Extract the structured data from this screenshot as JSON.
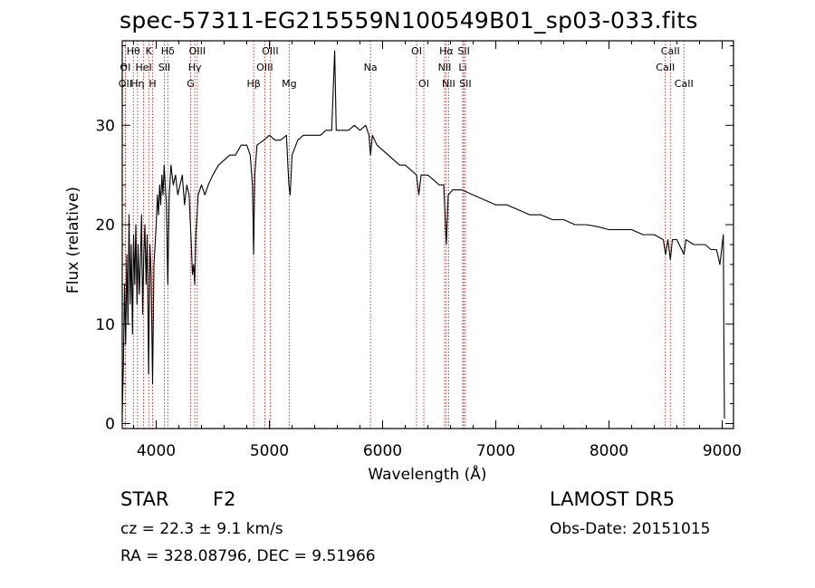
{
  "title": "spec-57311-EG215559N100549B01_sp03-033.fits",
  "info": {
    "object_class": "STAR",
    "subclass": "F2",
    "survey": "LAMOST DR5",
    "cz": "cz = 22.3 ± 9.1 km/s",
    "obs_date": "Obs-Date: 20151015",
    "radec": "RA = 328.08796, DEC =   9.51966"
  },
  "chart_data": {
    "type": "line",
    "title": "spec-57311-EG215559N100549B01_sp03-033.fits",
    "xlabel": "Wavelength (Å)",
    "ylabel": "Flux (relative)",
    "xlim": [
      3700,
      9100
    ],
    "ylim": [
      -0.5,
      38.5
    ],
    "xticks": [
      4000,
      5000,
      6000,
      7000,
      8000,
      9000
    ],
    "yticks": [
      0,
      10,
      20,
      30
    ],
    "grid": false,
    "line_color": "#000000",
    "marker_color": "#cc0000",
    "series": [
      {
        "values": [
          [
            3700,
            1
          ],
          [
            3710,
            6
          ],
          [
            3720,
            14
          ],
          [
            3730,
            8
          ],
          [
            3740,
            17
          ],
          [
            3750,
            10
          ],
          [
            3760,
            21
          ],
          [
            3770,
            12
          ],
          [
            3780,
            18
          ],
          [
            3790,
            9
          ],
          [
            3800,
            19
          ],
          [
            3810,
            14
          ],
          [
            3820,
            20
          ],
          [
            3830,
            12
          ],
          [
            3840,
            18
          ],
          [
            3850,
            13
          ],
          [
            3860,
            16
          ],
          [
            3870,
            21
          ],
          [
            3880,
            11
          ],
          [
            3890,
            17
          ],
          [
            3900,
            20
          ],
          [
            3910,
            14
          ],
          [
            3920,
            19
          ],
          [
            3933,
            5
          ],
          [
            3945,
            18
          ],
          [
            3955,
            15
          ],
          [
            3968,
            4
          ],
          [
            3980,
            16
          ],
          [
            3990,
            18
          ],
          [
            4000,
            20
          ],
          [
            4010,
            23
          ],
          [
            4020,
            21
          ],
          [
            4030,
            24
          ],
          [
            4040,
            22
          ],
          [
            4050,
            25
          ],
          [
            4060,
            23
          ],
          [
            4070,
            26
          ],
          [
            4080,
            24
          ],
          [
            4090,
            22
          ],
          [
            4102,
            14
          ],
          [
            4115,
            23
          ],
          [
            4130,
            26
          ],
          [
            4150,
            24
          ],
          [
            4170,
            25
          ],
          [
            4190,
            23
          ],
          [
            4210,
            24
          ],
          [
            4230,
            25
          ],
          [
            4250,
            22
          ],
          [
            4270,
            24
          ],
          [
            4290,
            23
          ],
          [
            4310,
            18
          ],
          [
            4320,
            15
          ],
          [
            4330,
            16
          ],
          [
            4340,
            14
          ],
          [
            4350,
            19
          ],
          [
            4370,
            23
          ],
          [
            4400,
            24
          ],
          [
            4430,
            23
          ],
          [
            4460,
            24
          ],
          [
            4500,
            25
          ],
          [
            4550,
            26
          ],
          [
            4600,
            26.5
          ],
          [
            4650,
            27
          ],
          [
            4700,
            27
          ],
          [
            4750,
            28
          ],
          [
            4800,
            28
          ],
          [
            4830,
            27
          ],
          [
            4850,
            24
          ],
          [
            4861,
            17
          ],
          [
            4870,
            25
          ],
          [
            4890,
            28
          ],
          [
            4950,
            28.5
          ],
          [
            5000,
            29
          ],
          [
            5050,
            28.5
          ],
          [
            5100,
            28.5
          ],
          [
            5150,
            29
          ],
          [
            5172,
            24
          ],
          [
            5183,
            23
          ],
          [
            5200,
            27
          ],
          [
            5250,
            28.5
          ],
          [
            5300,
            29
          ],
          [
            5350,
            29
          ],
          [
            5400,
            29
          ],
          [
            5450,
            29
          ],
          [
            5500,
            29.5
          ],
          [
            5550,
            29.5
          ],
          [
            5577,
            37.5
          ],
          [
            5590,
            29.5
          ],
          [
            5650,
            29.5
          ],
          [
            5700,
            29.5
          ],
          [
            5750,
            30
          ],
          [
            5800,
            29.5
          ],
          [
            5850,
            30
          ],
          [
            5880,
            29
          ],
          [
            5893,
            27
          ],
          [
            5910,
            29
          ],
          [
            5950,
            28
          ],
          [
            6000,
            27.5
          ],
          [
            6050,
            27
          ],
          [
            6100,
            26.5
          ],
          [
            6150,
            26
          ],
          [
            6200,
            26
          ],
          [
            6250,
            25.5
          ],
          [
            6300,
            25
          ],
          [
            6320,
            23
          ],
          [
            6340,
            25
          ],
          [
            6400,
            25
          ],
          [
            6450,
            24.5
          ],
          [
            6500,
            24
          ],
          [
            6540,
            24
          ],
          [
            6563,
            18
          ],
          [
            6580,
            23
          ],
          [
            6620,
            23.5
          ],
          [
            6700,
            23.5
          ],
          [
            6800,
            23
          ],
          [
            6900,
            22.5
          ],
          [
            7000,
            22
          ],
          [
            7100,
            22
          ],
          [
            7200,
            21.5
          ],
          [
            7300,
            21
          ],
          [
            7400,
            21
          ],
          [
            7500,
            20.5
          ],
          [
            7600,
            20.5
          ],
          [
            7700,
            20
          ],
          [
            7800,
            20
          ],
          [
            7900,
            19.8
          ],
          [
            8000,
            19.5
          ],
          [
            8100,
            19.5
          ],
          [
            8200,
            19.5
          ],
          [
            8300,
            19
          ],
          [
            8400,
            19
          ],
          [
            8480,
            18.5
          ],
          [
            8500,
            17
          ],
          [
            8520,
            18.5
          ],
          [
            8542,
            16.5
          ],
          [
            8560,
            18.5
          ],
          [
            8600,
            18.5
          ],
          [
            8662,
            17
          ],
          [
            8680,
            18.5
          ],
          [
            8750,
            18
          ],
          [
            8800,
            18
          ],
          [
            8850,
            18
          ],
          [
            8900,
            17.5
          ],
          [
            8950,
            17.5
          ],
          [
            8980,
            16
          ],
          [
            9000,
            18
          ],
          [
            9010,
            19
          ],
          [
            9015,
            8
          ],
          [
            9020,
            0.5
          ]
        ]
      }
    ],
    "lines": [
      {
        "label": "Hθ",
        "wave": 3798,
        "row": 0
      },
      {
        "label": "K",
        "wave": 3934,
        "row": 0
      },
      {
        "label": "Hδ",
        "wave": 4102,
        "row": 0
      },
      {
        "label": "OIII",
        "wave": 4363,
        "row": 0
      },
      {
        "label": "OIII",
        "wave": 5007,
        "row": 0
      },
      {
        "label": "OI",
        "wave": 6300,
        "row": 0
      },
      {
        "label": "Hα",
        "wave": 6563,
        "row": 0
      },
      {
        "label": "SII",
        "wave": 6717,
        "row": 0
      },
      {
        "label": "CaII",
        "wave": 8542,
        "row": 0
      },
      {
        "label": "OI",
        "wave": 3727,
        "row": 1
      },
      {
        "label": "HeI",
        "wave": 3889,
        "row": 1
      },
      {
        "label": "SII",
        "wave": 4072,
        "row": 1
      },
      {
        "label": "Hγ",
        "wave": 4341,
        "row": 1
      },
      {
        "label": "OIII",
        "wave": 4959,
        "row": 1
      },
      {
        "label": "Na",
        "wave": 5893,
        "row": 1
      },
      {
        "label": "NII",
        "wave": 6548,
        "row": 1
      },
      {
        "label": "Li",
        "wave": 6708,
        "row": 1
      },
      {
        "label": "CaII",
        "wave": 8498,
        "row": 1
      },
      {
        "label": "OII",
        "wave": 3727,
        "row": 2
      },
      {
        "label": "Hη",
        "wave": 3835,
        "row": 2
      },
      {
        "label": "H",
        "wave": 3968,
        "row": 2
      },
      {
        "label": "G",
        "wave": 4304,
        "row": 2
      },
      {
        "label": "Hβ",
        "wave": 4861,
        "row": 2
      },
      {
        "label": "Mg",
        "wave": 5175,
        "row": 2
      },
      {
        "label": "OI",
        "wave": 6364,
        "row": 2
      },
      {
        "label": "NII",
        "wave": 6583,
        "row": 2
      },
      {
        "label": "SII",
        "wave": 6731,
        "row": 2
      },
      {
        "label": "CaII",
        "wave": 8662,
        "row": 2
      }
    ]
  }
}
